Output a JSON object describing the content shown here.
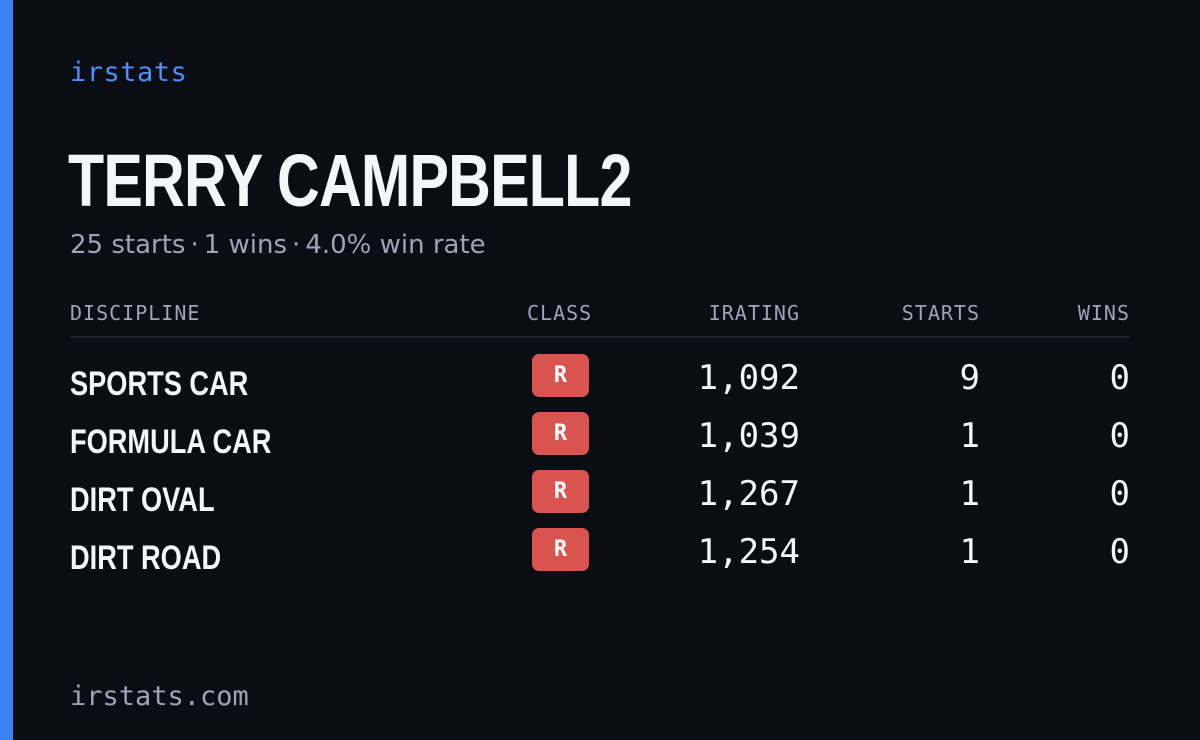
{
  "brand": "irstats",
  "driver": {
    "name": "TERRY CAMPBELL2"
  },
  "summary": {
    "starts": "25 starts",
    "wins": "1 wins",
    "win_rate": "4.0% win rate",
    "separator": "·"
  },
  "table": {
    "headers": {
      "discipline": "DISCIPLINE",
      "class": "CLASS",
      "irating": "IRATING",
      "starts": "STARTS",
      "wins": "WINS"
    },
    "rows": [
      {
        "discipline": "SPORTS CAR",
        "class": "R",
        "irating": "1,092",
        "starts": "9",
        "wins": "0"
      },
      {
        "discipline": "FORMULA CAR",
        "class": "R",
        "irating": "1,039",
        "starts": "1",
        "wins": "0"
      },
      {
        "discipline": "DIRT OVAL",
        "class": "R",
        "irating": "1,267",
        "starts": "1",
        "wins": "0"
      },
      {
        "discipline": "DIRT ROAD",
        "class": "R",
        "irating": "1,254",
        "starts": "1",
        "wins": "0"
      }
    ]
  },
  "footer": {
    "domain": "irstats.com"
  },
  "colors": {
    "background": "#0a0d14",
    "accent": "#3b82f6",
    "class_r": "#d9534f",
    "muted_text": "#9ba5b6"
  }
}
